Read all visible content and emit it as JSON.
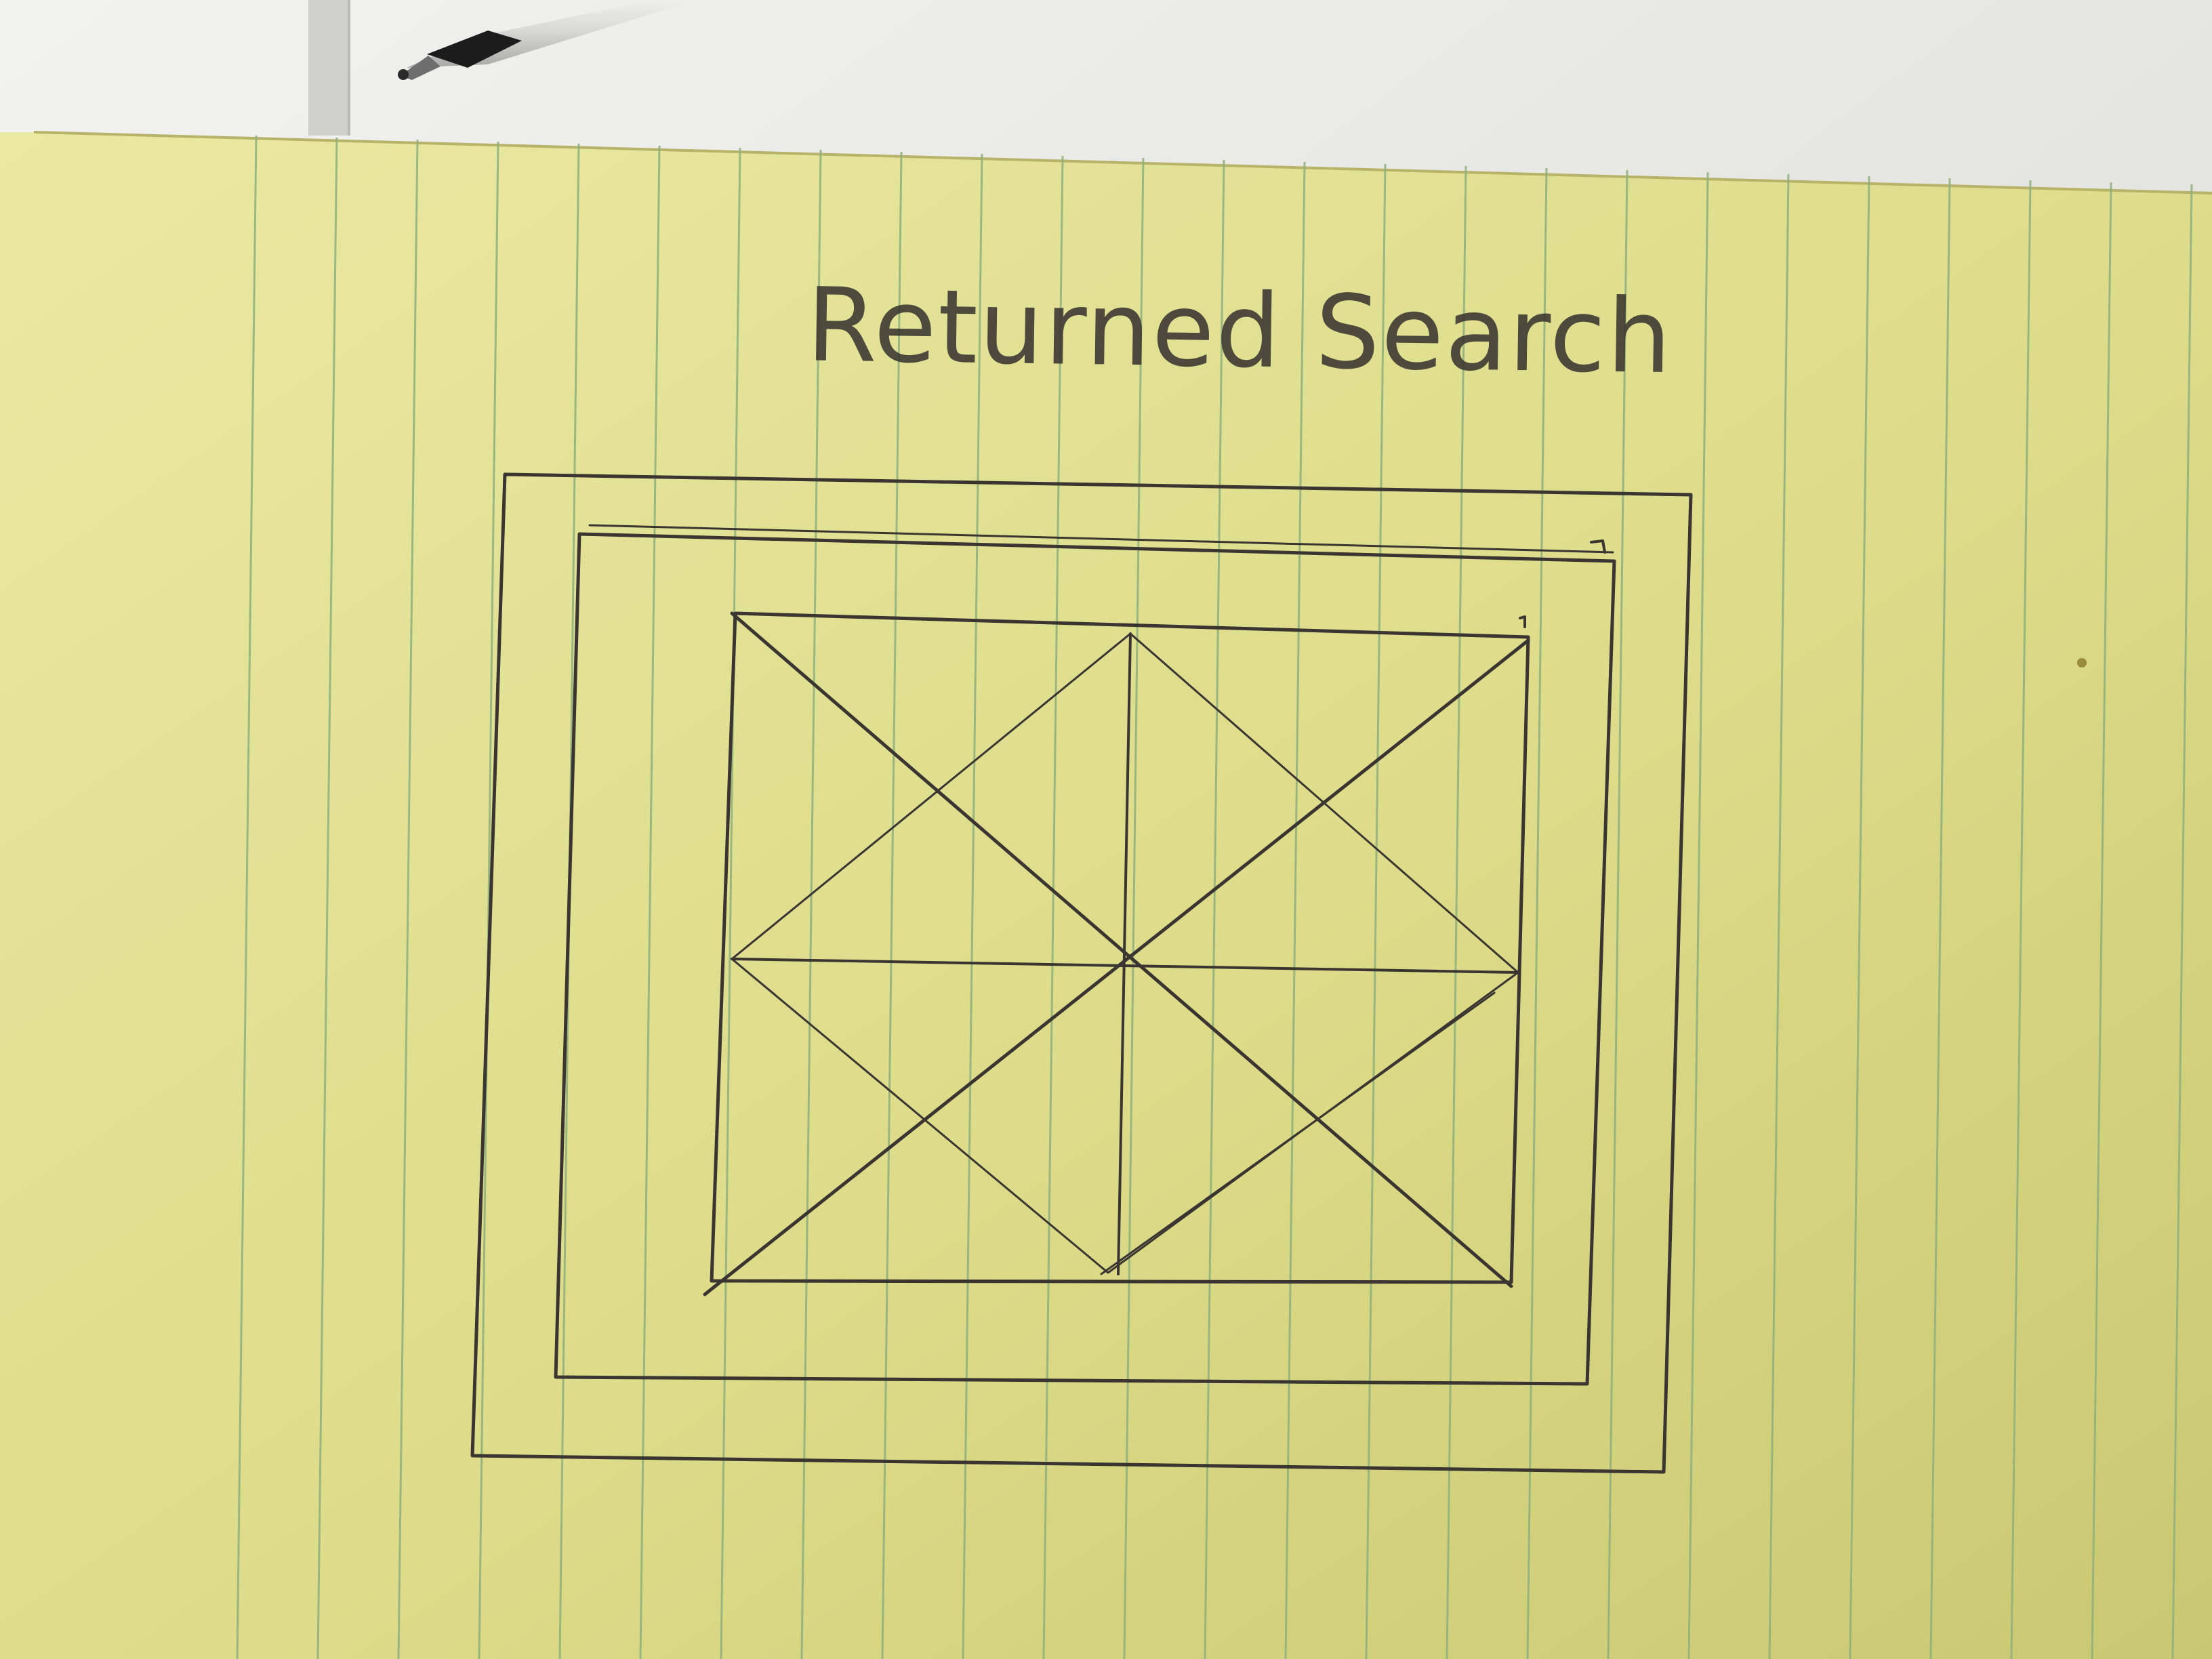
{
  "sketch": {
    "title": "Returned Search"
  },
  "colors": {
    "desk": "#e6e6e2",
    "paper": "#dcdc8a",
    "rule_line": "#8fb07c",
    "ink": "#3a3530"
  }
}
